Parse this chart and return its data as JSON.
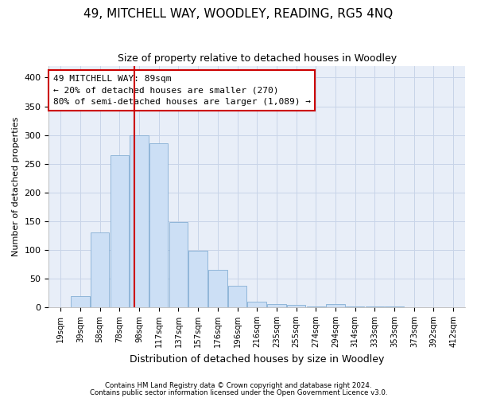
{
  "title": "49, MITCHELL WAY, WOODLEY, READING, RG5 4NQ",
  "subtitle": "Size of property relative to detached houses in Woodley",
  "xlabel": "Distribution of detached houses by size in Woodley",
  "ylabel": "Number of detached properties",
  "footnote1": "Contains HM Land Registry data © Crown copyright and database right 2024.",
  "footnote2": "Contains public sector information licensed under the Open Government Licence v3.0.",
  "bar_labels": [
    "19sqm",
    "39sqm",
    "58sqm",
    "78sqm",
    "98sqm",
    "117sqm",
    "137sqm",
    "157sqm",
    "176sqm",
    "196sqm",
    "216sqm",
    "235sqm",
    "255sqm",
    "274sqm",
    "294sqm",
    "314sqm",
    "333sqm",
    "353sqm",
    "373sqm",
    "392sqm",
    "412sqm"
  ],
  "bar_values": [
    0,
    20,
    130,
    265,
    300,
    285,
    148,
    98,
    65,
    38,
    10,
    6,
    4,
    2,
    5,
    2,
    2,
    2,
    0,
    0,
    0
  ],
  "bar_color": "#ccdff5",
  "bar_edge_color": "#85afd4",
  "grid_color": "#c8d4e8",
  "bg_color": "#e8eef8",
  "fig_bg_color": "#ffffff",
  "vline_color": "#cc0000",
  "annotation_text": "49 MITCHELL WAY: 89sqm\n← 20% of detached houses are smaller (270)\n80% of semi-detached houses are larger (1,089) →",
  "annotation_box_color": "#ffffff",
  "annotation_box_edge": "#cc0000",
  "ylim": [
    0,
    420
  ],
  "yticks": [
    0,
    50,
    100,
    150,
    200,
    250,
    300,
    350,
    400
  ]
}
